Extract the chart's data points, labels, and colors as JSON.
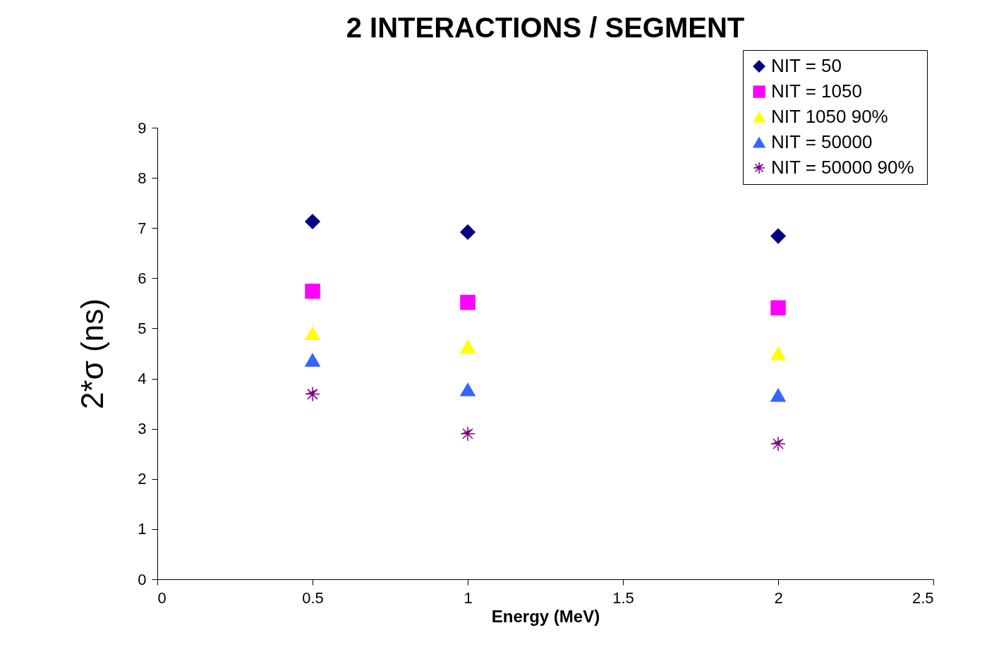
{
  "chart_data": {
    "type": "scatter",
    "title": "2 INTERACTIONS / SEGMENT",
    "xlabel": "Energy (MeV)",
    "ylabel": "2*σ (ns)",
    "x": [
      0.5,
      1,
      2
    ],
    "series": [
      {
        "name": "NIT = 50",
        "color": "#000080",
        "marker": "diamond",
        "values": [
          7.13,
          6.92,
          6.84
        ]
      },
      {
        "name": "NIT = 1050",
        "color": "#ff00ff",
        "marker": "square",
        "values": [
          5.74,
          5.52,
          5.41
        ]
      },
      {
        "name": "NIT 1050 90%",
        "color": "#ffff00",
        "marker": "triangle",
        "values": [
          4.9,
          4.64,
          4.5
        ]
      },
      {
        "name": "NIT = 50000",
        "color": "#3366ff",
        "marker": "triangle",
        "values": [
          4.37,
          3.78,
          3.67
        ]
      },
      {
        "name": "NIT = 50000  90%",
        "color": "#800080",
        "marker": "cross",
        "values": [
          3.69,
          2.9,
          2.7
        ]
      }
    ],
    "xlim": [
      0,
      2.5
    ],
    "xticks": [
      0,
      0.5,
      1,
      1.5,
      2,
      2.5
    ],
    "ylim": [
      0,
      9
    ],
    "yticks": [
      0,
      1,
      2,
      3,
      4,
      5,
      6,
      7,
      8,
      9
    ],
    "grid": false,
    "legend": "top right"
  }
}
